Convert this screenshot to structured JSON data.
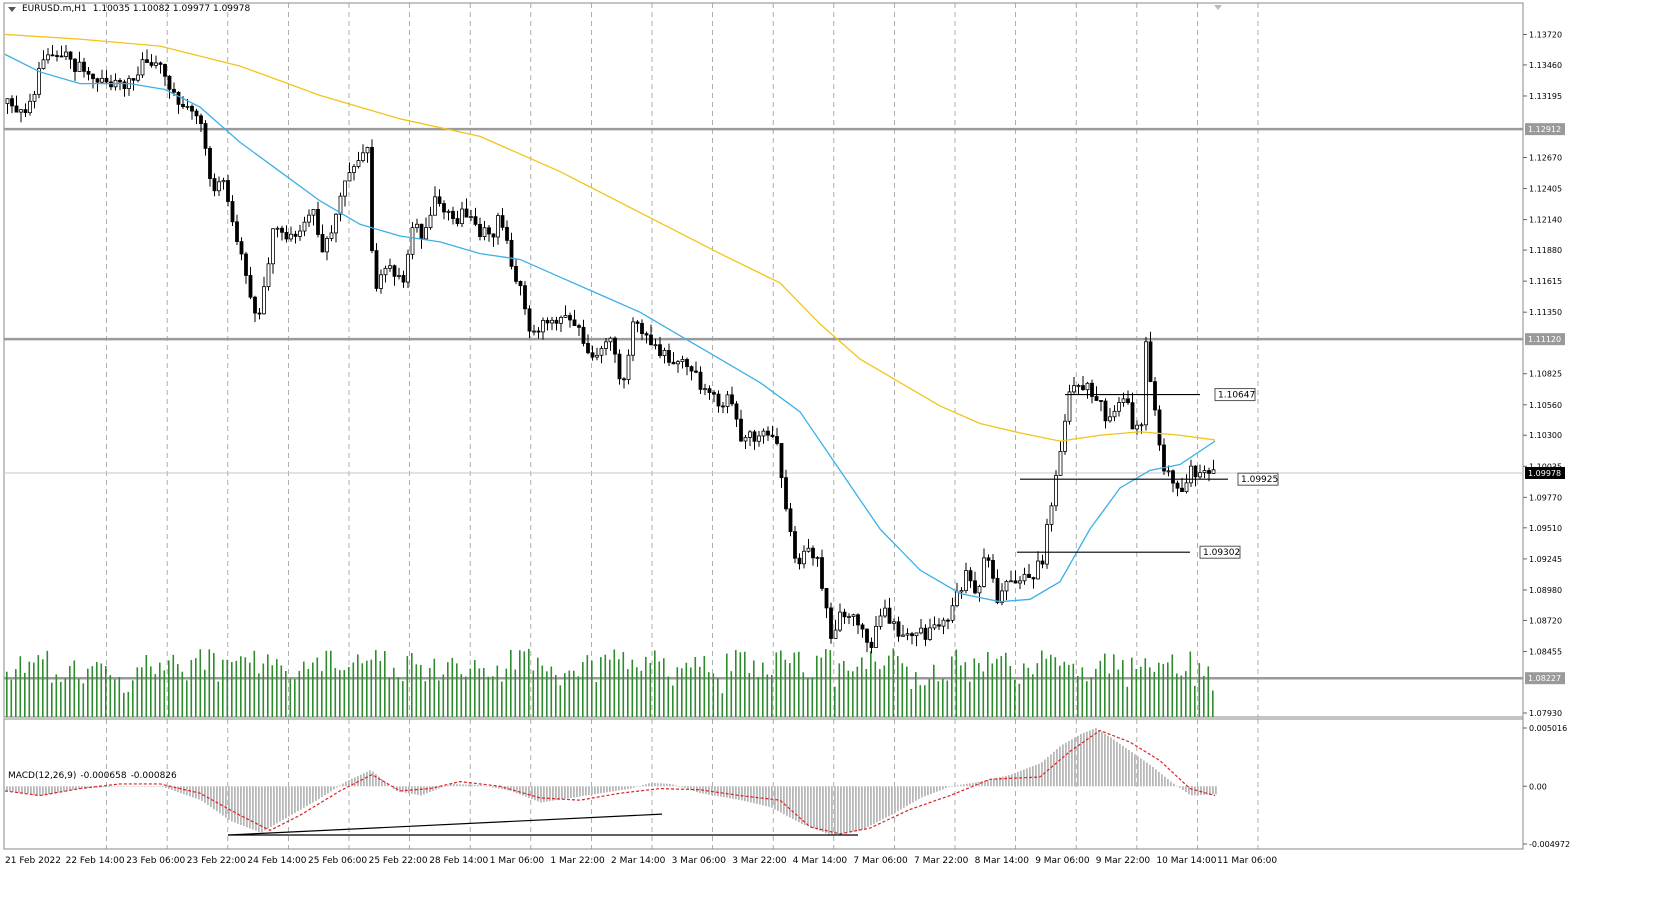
{
  "header": {
    "symbol": "EURUSD.m,H1",
    "ohlc": "1.10035 1.10082 1.09977 1.09978"
  },
  "macd_header": {
    "label": "MACD(12,26,9)",
    "main": "-0.000658",
    "signal": "-0.000826"
  },
  "colors": {
    "ma_fast": "#3ab0e6",
    "ma_slow": "#f2c419",
    "volume": "#2e8b2e",
    "macd_hist": "#b8b8b8",
    "macd_signal": "#e02020",
    "level_line": "#9a9a9a",
    "grid": "#9a9a9a"
  },
  "chart_data": [
    {
      "type": "candlestick",
      "title": "",
      "ylim": [
        1.0793,
        1.1392
      ],
      "y_ticks": [
        "1.13720",
        "1.13460",
        "1.13195",
        "1.12670",
        "1.12405",
        "1.12140",
        "1.11880",
        "1.11615",
        "1.11350",
        "1.10825",
        "1.10560",
        "1.10300",
        "1.10035",
        "1.09770",
        "1.09510",
        "1.09245",
        "1.08980",
        "1.08720",
        "1.08455",
        "1.07930"
      ],
      "x_labels": [
        "21 Feb 2022",
        "22 Feb 14:00",
        "23 Feb 06:00",
        "23 Feb 22:00",
        "24 Feb 14:00",
        "25 Feb 06:00",
        "25 Feb 22:00",
        "28 Feb 14:00",
        "1 Mar 06:00",
        "1 Mar 22:00",
        "2 Mar 14:00",
        "3 Mar 06:00",
        "3 Mar 22:00",
        "4 Mar 14:00",
        "7 Mar 06:00",
        "7 Mar 22:00",
        "8 Mar 14:00",
        "9 Mar 06:00",
        "9 Mar 22:00",
        "10 Mar 14:00",
        "11 Mar 06:00"
      ],
      "price_path": [
        [
          0,
          1.1315
        ],
        [
          10,
          1.131
        ],
        [
          22,
          1.13
        ],
        [
          35,
          1.133
        ],
        [
          45,
          1.136
        ],
        [
          58,
          1.1355
        ],
        [
          75,
          1.1345
        ],
        [
          95,
          1.1335
        ],
        [
          110,
          1.133
        ],
        [
          125,
          1.133
        ],
        [
          135,
          1.1335
        ],
        [
          145,
          1.1352
        ],
        [
          158,
          1.1345
        ],
        [
          170,
          1.1318
        ],
        [
          185,
          1.131
        ],
        [
          200,
          1.1295
        ],
        [
          210,
          1.124
        ],
        [
          222,
          1.125
        ],
        [
          235,
          1.12
        ],
        [
          245,
          1.116
        ],
        [
          255,
          1.113
        ],
        [
          262,
          1.115
        ],
        [
          270,
          1.12
        ],
        [
          280,
          1.1205
        ],
        [
          290,
          1.12
        ],
        [
          300,
          1.121
        ],
        [
          312,
          1.1225
        ],
        [
          322,
          1.1185
        ],
        [
          332,
          1.1205
        ],
        [
          342,
          1.1245
        ],
        [
          355,
          1.126
        ],
        [
          368,
          1.1275
        ],
        [
          372,
          1.114
        ],
        [
          382,
          1.118
        ],
        [
          392,
          1.1165
        ],
        [
          402,
          1.1165
        ],
        [
          412,
          1.121
        ],
        [
          422,
          1.12
        ],
        [
          432,
          1.123
        ],
        [
          442,
          1.1225
        ],
        [
          455,
          1.1215
        ],
        [
          465,
          1.122
        ],
        [
          478,
          1.1205
        ],
        [
          490,
          1.12
        ],
        [
          498,
          1.122
        ],
        [
          510,
          1.1175
        ],
        [
          520,
          1.1155
        ],
        [
          530,
          1.111
        ],
        [
          540,
          1.113
        ],
        [
          550,
          1.1128
        ],
        [
          560,
          1.1125
        ],
        [
          575,
          1.113
        ],
        [
          590,
          1.109
        ],
        [
          600,
          1.11
        ],
        [
          610,
          1.111
        ],
        [
          620,
          1.1065
        ],
        [
          632,
          1.113
        ],
        [
          645,
          1.1115
        ],
        [
          660,
          1.11
        ],
        [
          675,
          1.1095
        ],
        [
          690,
          1.1085
        ],
        [
          705,
          1.1065
        ],
        [
          718,
          1.1055
        ],
        [
          730,
          1.1065
        ],
        [
          740,
          1.102
        ],
        [
          752,
          1.103
        ],
        [
          765,
          1.1035
        ],
        [
          775,
          1.1025
        ],
        [
          785,
          1.096
        ],
        [
          795,
          1.0925
        ],
        [
          808,
          1.093
        ],
        [
          818,
          1.092
        ],
        [
          828,
          1.086
        ],
        [
          838,
          1.0875
        ],
        [
          850,
          1.088
        ],
        [
          860,
          1.086
        ],
        [
          870,
          1.085
        ],
        [
          880,
          1.0885
        ],
        [
          892,
          1.087
        ],
        [
          904,
          1.0855
        ],
        [
          915,
          1.086
        ],
        [
          925,
          1.086
        ],
        [
          935,
          1.087
        ],
        [
          945,
          1.0865
        ],
        [
          955,
          1.0895
        ],
        [
          965,
          1.091
        ],
        [
          975,
          1.0895
        ],
        [
          985,
          1.0935
        ],
        [
          995,
          1.089
        ],
        [
          1005,
          1.09
        ],
        [
          1015,
          1.0905
        ],
        [
          1028,
          1.091
        ],
        [
          1040,
          1.092
        ],
        [
          1050,
          1.0975
        ],
        [
          1058,
          1.101
        ],
        [
          1068,
          1.107
        ],
        [
          1080,
          1.1075
        ],
        [
          1092,
          1.1065
        ],
        [
          1105,
          1.1045
        ],
        [
          1115,
          1.1055
        ],
        [
          1125,
          1.106
        ],
        [
          1132,
          1.1035
        ],
        [
          1140,
          1.104
        ],
        [
          1145,
          1.112
        ],
        [
          1150,
          1.107
        ],
        [
          1160,
          1.101
        ],
        [
          1170,
          1.099
        ],
        [
          1180,
          1.0985
        ],
        [
          1188,
          1.1
        ],
        [
          1198,
          1.0995
        ],
        [
          1208,
          1.1003
        ],
        [
          1216,
          1.0998
        ]
      ],
      "ma_fast_path": [
        [
          5,
          1.1355
        ],
        [
          40,
          1.134
        ],
        [
          80,
          1.133
        ],
        [
          130,
          1.133
        ],
        [
          165,
          1.1325
        ],
        [
          200,
          1.131
        ],
        [
          240,
          1.128
        ],
        [
          280,
          1.1255
        ],
        [
          320,
          1.123
        ],
        [
          360,
          1.121
        ],
        [
          400,
          1.12
        ],
        [
          440,
          1.1195
        ],
        [
          480,
          1.1185
        ],
        [
          520,
          1.118
        ],
        [
          560,
          1.1165
        ],
        [
          600,
          1.115
        ],
        [
          640,
          1.1135
        ],
        [
          680,
          1.1115
        ],
        [
          720,
          1.1095
        ],
        [
          760,
          1.1075
        ],
        [
          800,
          1.105
        ],
        [
          840,
          1.1
        ],
        [
          880,
          1.095
        ],
        [
          920,
          1.0915
        ],
        [
          960,
          1.0895
        ],
        [
          1000,
          1.0888
        ],
        [
          1030,
          1.089
        ],
        [
          1060,
          1.0905
        ],
        [
          1090,
          1.095
        ],
        [
          1120,
          1.0985
        ],
        [
          1150,
          1.1
        ],
        [
          1180,
          1.1005
        ],
        [
          1215,
          1.1025
        ]
      ],
      "ma_slow_path": [
        [
          5,
          1.1372
        ],
        [
          80,
          1.1368
        ],
        [
          160,
          1.1362
        ],
        [
          240,
          1.1345
        ],
        [
          320,
          1.132
        ],
        [
          400,
          1.13
        ],
        [
          480,
          1.1285
        ],
        [
          560,
          1.1255
        ],
        [
          640,
          1.122
        ],
        [
          720,
          1.1185
        ],
        [
          780,
          1.116
        ],
        [
          820,
          1.1125
        ],
        [
          860,
          1.1095
        ],
        [
          900,
          1.1075
        ],
        [
          940,
          1.1055
        ],
        [
          980,
          1.104
        ],
        [
          1020,
          1.1032
        ],
        [
          1060,
          1.1025
        ],
        [
          1100,
          1.103
        ],
        [
          1140,
          1.1033
        ],
        [
          1180,
          1.103
        ],
        [
          1215,
          1.1026
        ]
      ],
      "horizontal_levels": [
        {
          "price": 1.12912,
          "label": "1.12912"
        },
        {
          "price": 1.1112,
          "label": "1.11120"
        },
        {
          "price": 1.08227,
          "label": "1.08227"
        }
      ],
      "current_price": {
        "price": 1.09978,
        "label": "1.09978"
      },
      "segment_levels": [
        {
          "price": 1.10647,
          "label": "1.10647"
        },
        {
          "price": 1.09925,
          "label": "1.09925"
        },
        {
          "price": 1.09302,
          "label": "1.09302"
        }
      ]
    },
    {
      "type": "bar",
      "title": "MACD(12,26,9)",
      "ylim": [
        -0.004972,
        0.005016
      ],
      "y_ticks": [
        "0.005016",
        "0.00",
        "-0.004972"
      ],
      "hist_path": [
        [
          5,
          -0.0004
        ],
        [
          40,
          -0.0008
        ],
        [
          80,
          -0.0002
        ],
        [
          120,
          0.0
        ],
        [
          160,
          0.0
        ],
        [
          200,
          -0.0012
        ],
        [
          230,
          -0.003
        ],
        [
          260,
          -0.004
        ],
        [
          290,
          -0.0025
        ],
        [
          320,
          -0.001
        ],
        [
          345,
          0.0004
        ],
        [
          370,
          0.0014
        ],
        [
          395,
          -0.0004
        ],
        [
          420,
          -0.0008
        ],
        [
          450,
          0.0002
        ],
        [
          480,
          0.0001
        ],
        [
          510,
          -0.0004
        ],
        [
          540,
          -0.0014
        ],
        [
          570,
          -0.001
        ],
        [
          600,
          -0.0006
        ],
        [
          630,
          -0.0002
        ],
        [
          650,
          0.0003
        ],
        [
          670,
          0.0002
        ],
        [
          700,
          -0.0006
        ],
        [
          740,
          -0.0012
        ],
        [
          770,
          -0.0018
        ],
        [
          800,
          -0.0032
        ],
        [
          830,
          -0.0042
        ],
        [
          860,
          -0.0038
        ],
        [
          890,
          -0.0025
        ],
        [
          920,
          -0.001
        ],
        [
          950,
          0.0
        ],
        [
          980,
          0.0004
        ],
        [
          1010,
          0.001
        ],
        [
          1040,
          0.002
        ],
        [
          1060,
          0.0035
        ],
        [
          1080,
          0.0045
        ],
        [
          1095,
          0.005
        ],
        [
          1110,
          0.0042
        ],
        [
          1130,
          0.003
        ],
        [
          1150,
          0.0018
        ],
        [
          1170,
          0.0004
        ],
        [
          1190,
          -0.0008
        ],
        [
          1215,
          -0.0007
        ]
      ],
      "signal_path": [
        [
          5,
          -0.0004
        ],
        [
          40,
          -0.0008
        ],
        [
          80,
          -0.0002
        ],
        [
          120,
          0.0002
        ],
        [
          160,
          0.0002
        ],
        [
          200,
          -0.0006
        ],
        [
          240,
          -0.0025
        ],
        [
          270,
          -0.0038
        ],
        [
          300,
          -0.0025
        ],
        [
          340,
          -0.0004
        ],
        [
          372,
          0.001
        ],
        [
          400,
          -0.0004
        ],
        [
          430,
          -0.0002
        ],
        [
          460,
          0.0004
        ],
        [
          500,
          0.0
        ],
        [
          540,
          -0.001
        ],
        [
          580,
          -0.0012
        ],
        [
          620,
          -0.0006
        ],
        [
          660,
          -0.0002
        ],
        [
          700,
          -0.0003
        ],
        [
          740,
          -0.0008
        ],
        [
          780,
          -0.0012
        ],
        [
          810,
          -0.0035
        ],
        [
          840,
          -0.0041
        ],
        [
          870,
          -0.0036
        ],
        [
          910,
          -0.002
        ],
        [
          950,
          -0.0008
        ],
        [
          990,
          0.0006
        ],
        [
          1040,
          0.0008
        ],
        [
          1070,
          0.003
        ],
        [
          1100,
          0.0048
        ],
        [
          1130,
          0.0038
        ],
        [
          1160,
          0.0022
        ],
        [
          1190,
          -0.0002
        ],
        [
          1215,
          -0.0008
        ]
      ],
      "trend_lines": [
        {
          "from": [
            228,
            -0.0042
          ],
          "to": [
            662,
            -0.0024
          ]
        },
        {
          "from": [
            228,
            -0.0042
          ],
          "to": [
            858,
            -0.0042
          ]
        }
      ]
    }
  ]
}
